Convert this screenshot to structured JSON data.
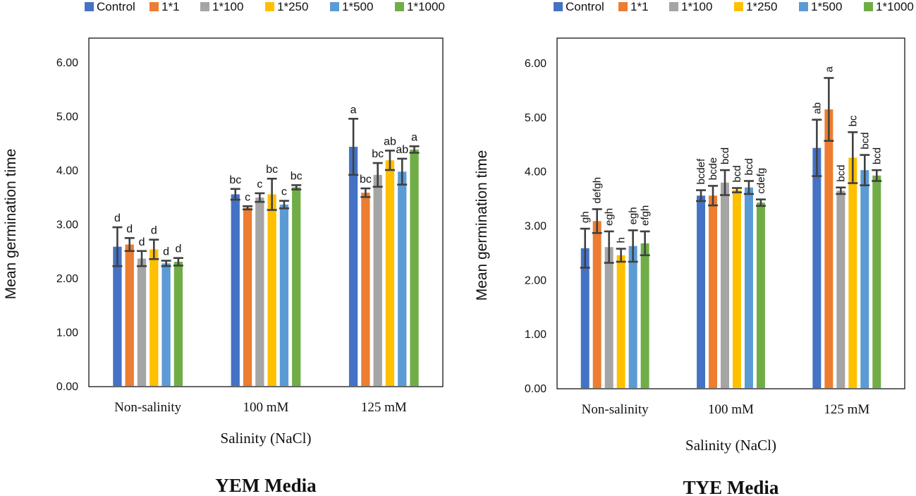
{
  "chart_data": [
    {
      "type": "bar",
      "title": "YEM Media",
      "xlabel": "Salinity (NaCl)",
      "ylabel": "Mean germination time",
      "ylim": [
        0,
        6
      ],
      "yticks": [
        "0.00",
        "1.00",
        "2.00",
        "3.00",
        "4.00",
        "5.00",
        "6.00"
      ],
      "categories": [
        "Non-salinity",
        "100 mM",
        "125 mM"
      ],
      "legend_position": "top",
      "series": [
        {
          "name": "Control",
          "color": "#4472c4",
          "values": [
            2.58,
            3.55,
            4.43
          ],
          "errors": [
            0.36,
            0.1,
            0.52
          ],
          "labels": [
            "d",
            "bc",
            "a"
          ]
        },
        {
          "name": "1*1",
          "color": "#ed7d31",
          "values": [
            2.62,
            3.3,
            3.58
          ],
          "errors": [
            0.12,
            0.03,
            0.08
          ],
          "labels": [
            "d",
            "c",
            "bc"
          ]
        },
        {
          "name": "1*100",
          "color": "#a5a5a5",
          "values": [
            2.36,
            3.49,
            3.91
          ],
          "errors": [
            0.14,
            0.08,
            0.22
          ],
          "labels": [
            "d",
            "c",
            "bc"
          ]
        },
        {
          "name": "1*250",
          "color": "#ffc000",
          "values": [
            2.53,
            3.55,
            4.18
          ],
          "errors": [
            0.18,
            0.29,
            0.18
          ],
          "labels": [
            "d",
            "bc",
            "ab"
          ]
        },
        {
          "name": "1*500",
          "color": "#5b9bd5",
          "values": [
            2.27,
            3.36,
            3.97
          ],
          "errors": [
            0.05,
            0.07,
            0.24
          ],
          "labels": [
            "d",
            "c",
            "ab"
          ]
        },
        {
          "name": "1*1000",
          "color": "#70ad47",
          "values": [
            2.3,
            3.68,
            4.38
          ],
          "errors": [
            0.07,
            0.04,
            0.06
          ],
          "labels": [
            "d",
            "bc",
            "a"
          ]
        }
      ]
    },
    {
      "type": "bar",
      "title": "TYE Media",
      "xlabel": "Salinity (NaCl)",
      "ylabel": "Mean germination time",
      "ylim": [
        0,
        6
      ],
      "yticks": [
        "0.00",
        "1.00",
        "2.00",
        "3.00",
        "4.00",
        "5.00",
        "6.00"
      ],
      "categories": [
        "Non-salinity",
        "100 mM",
        "125 mM"
      ],
      "legend_position": "top",
      "series": [
        {
          "name": "Control",
          "color": "#4472c4",
          "values": [
            2.58,
            3.55,
            4.43
          ],
          "errors": [
            0.36,
            0.1,
            0.52
          ],
          "labels": [
            "gh",
            "bcdef",
            "ab"
          ]
        },
        {
          "name": "1*1",
          "color": "#ed7d31",
          "values": [
            3.08,
            3.55,
            5.14
          ],
          "errors": [
            0.22,
            0.18,
            0.58
          ],
          "labels": [
            "defgh",
            "bcde",
            "a"
          ]
        },
        {
          "name": "1*100",
          "color": "#a5a5a5",
          "values": [
            2.6,
            3.79,
            3.64
          ],
          "errors": [
            0.29,
            0.23,
            0.06
          ],
          "labels": [
            "egh",
            "bcd",
            "bcd"
          ]
        },
        {
          "name": "1*250",
          "color": "#ffc000",
          "values": [
            2.45,
            3.65,
            4.25
          ],
          "errors": [
            0.12,
            0.04,
            0.47
          ],
          "labels": [
            "h",
            "bcd",
            "bc"
          ]
        },
        {
          "name": "1*500",
          "color": "#5b9bd5",
          "values": [
            2.62,
            3.7,
            4.02
          ],
          "errors": [
            0.29,
            0.12,
            0.28
          ],
          "labels": [
            "egh",
            "bcd",
            "bcd"
          ]
        },
        {
          "name": "1*1000",
          "color": "#70ad47",
          "values": [
            2.67,
            3.42,
            3.92
          ],
          "errors": [
            0.22,
            0.06,
            0.1
          ],
          "labels": [
            "efgh",
            "cdefg",
            "bcd"
          ]
        }
      ]
    }
  ]
}
